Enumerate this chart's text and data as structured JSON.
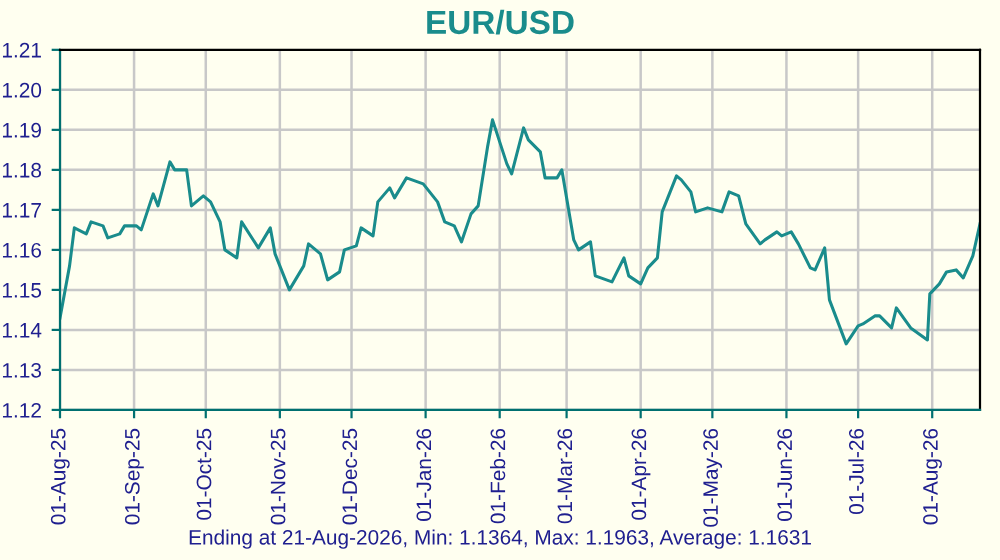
{
  "chart_data": {
    "type": "line",
    "title": "EUR/USD",
    "annotations": [
      "Ending at 21-Aug-2026, Min: 1.1364, Max: 1.1963, Average: 1.1631"
    ],
    "x": [
      "2025-08-01",
      "2025-08-05",
      "2025-08-07",
      "2025-08-12",
      "2025-08-14",
      "2025-08-19",
      "2025-08-21",
      "2025-08-26",
      "2025-08-28",
      "2025-09-02",
      "2025-09-04",
      "2025-09-09",
      "2025-09-11",
      "2025-09-16",
      "2025-09-18",
      "2025-09-23",
      "2025-09-25",
      "2025-09-30",
      "2025-10-03",
      "2025-10-07",
      "2025-10-09",
      "2025-10-14",
      "2025-10-16",
      "2025-10-23",
      "2025-10-28",
      "2025-10-30",
      "2025-11-05",
      "2025-11-11",
      "2025-11-13",
      "2025-11-18",
      "2025-11-21",
      "2025-11-26",
      "2025-11-28",
      "2025-12-03",
      "2025-12-05",
      "2025-12-10",
      "2025-12-12",
      "2025-12-17",
      "2025-12-19",
      "2025-12-24",
      "2025-12-31",
      "2026-01-06",
      "2026-01-09",
      "2026-01-13",
      "2026-01-16",
      "2026-01-20",
      "2026-01-23",
      "2026-01-27",
      "2026-01-29",
      "2026-02-04",
      "2026-02-06",
      "2026-02-11",
      "2026-02-13",
      "2026-02-18",
      "2026-02-20",
      "2026-02-25",
      "2026-02-27",
      "2026-03-04",
      "2026-03-06",
      "2026-03-11",
      "2026-03-13",
      "2026-03-20",
      "2026-03-25",
      "2026-03-27",
      "2026-04-01",
      "2026-04-04",
      "2026-04-08",
      "2026-04-10",
      "2026-04-16",
      "2026-04-18",
      "2026-04-22",
      "2026-04-24",
      "2026-04-29",
      "2026-05-05",
      "2026-05-08",
      "2026-05-12",
      "2026-05-15",
      "2026-05-21",
      "2026-05-23",
      "2026-05-28",
      "2026-05-30",
      "2026-06-03",
      "2026-06-06",
      "2026-06-11",
      "2026-06-13",
      "2026-06-17",
      "2026-06-19",
      "2026-06-26",
      "2026-07-01",
      "2026-07-03",
      "2026-07-08",
      "2026-07-10",
      "2026-07-15",
      "2026-07-17",
      "2026-07-23",
      "2026-07-30",
      "2026-07-31",
      "2026-08-04",
      "2026-08-07",
      "2026-08-11",
      "2026-08-14",
      "2026-08-18",
      "2026-08-21"
    ],
    "series": [
      {
        "color": "#1a8c8c",
        "values": [
          1.143,
          1.156,
          1.1655,
          1.164,
          1.167,
          1.166,
          1.163,
          1.164,
          1.166,
          1.166,
          1.165,
          1.174,
          1.171,
          1.182,
          1.18,
          1.18,
          1.171,
          1.1735,
          1.172,
          1.167,
          1.16,
          1.158,
          1.167,
          1.1605,
          1.1655,
          1.159,
          1.15,
          1.156,
          1.1615,
          1.159,
          1.1525,
          1.1545,
          1.16,
          1.161,
          1.1655,
          1.1635,
          1.172,
          1.1755,
          1.173,
          1.178,
          1.1765,
          1.172,
          1.167,
          1.166,
          1.162,
          1.169,
          1.171,
          1.186,
          1.1925,
          1.1815,
          1.179,
          1.1905,
          1.1875,
          1.1845,
          1.178,
          1.178,
          1.18,
          1.1625,
          1.16,
          1.162,
          1.1535,
          1.152,
          1.158,
          1.1535,
          1.1515,
          1.1555,
          1.158,
          1.1695,
          1.1785,
          1.1775,
          1.1745,
          1.1695,
          1.1705,
          1.1695,
          1.1745,
          1.1735,
          1.1665,
          1.1615,
          1.1625,
          1.1645,
          1.1635,
          1.1645,
          1.1615,
          1.1555,
          1.155,
          1.1605,
          1.1475,
          1.1365,
          1.141,
          1.1415,
          1.1435,
          1.1435,
          1.1405,
          1.1455,
          1.1405,
          1.1375,
          1.149,
          1.1515,
          1.1545,
          1.155,
          1.153,
          1.1585,
          1.1665
        ]
      }
    ],
    "xlim": [
      "2025-08-01",
      "2026-08-21"
    ],
    "xticks": [
      {
        "value": "2025-08-01",
        "label": "01-Aug-25"
      },
      {
        "value": "2025-09-01",
        "label": "01-Sep-25"
      },
      {
        "value": "2025-10-01",
        "label": "01-Oct-25"
      },
      {
        "value": "2025-11-01",
        "label": "01-Nov-25"
      },
      {
        "value": "2025-12-01",
        "label": "01-Dec-25"
      },
      {
        "value": "2026-01-01",
        "label": "01-Jan-26"
      },
      {
        "value": "2026-02-01",
        "label": "01-Feb-26"
      },
      {
        "value": "2026-03-01",
        "label": "01-Mar-26"
      },
      {
        "value": "2026-04-01",
        "label": "01-Apr-26"
      },
      {
        "value": "2026-05-01",
        "label": "01-May-26"
      },
      {
        "value": "2026-06-01",
        "label": "01-Jun-26"
      },
      {
        "value": "2026-07-01",
        "label": "01-Jul-26"
      },
      {
        "value": "2026-08-01",
        "label": "01-Aug-26"
      }
    ],
    "ylim": [
      1.12,
      1.21
    ],
    "yticks": [
      {
        "value": 1.12,
        "label": "1.12"
      },
      {
        "value": 1.13,
        "label": "1.13"
      },
      {
        "value": 1.14,
        "label": "1.14"
      },
      {
        "value": 1.15,
        "label": "1.15"
      },
      {
        "value": 1.16,
        "label": "1.16"
      },
      {
        "value": 1.17,
        "label": "1.17"
      },
      {
        "value": 1.18,
        "label": "1.18"
      },
      {
        "value": 1.19,
        "label": "1.19"
      },
      {
        "value": 1.2,
        "label": "1.20"
      },
      {
        "value": 1.21,
        "label": "1.21"
      }
    ],
    "grid": true,
    "marker": "none",
    "line_style": "solid"
  }
}
